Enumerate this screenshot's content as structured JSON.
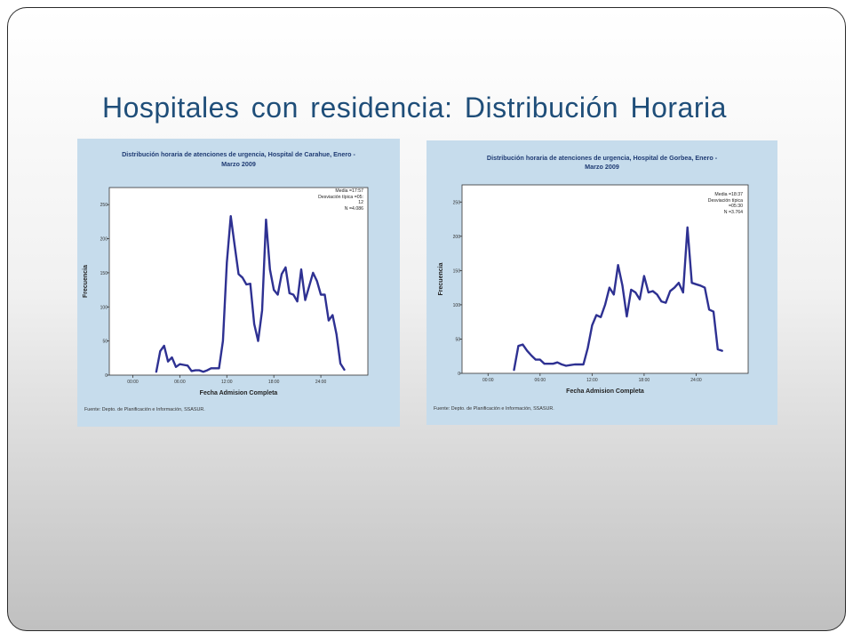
{
  "slide": {
    "title": "Hospitales con residencia: Distribución Horaria",
    "colors": {
      "title": "#1f4e79",
      "panel": "#c6dcec",
      "series": "#2e3192"
    }
  },
  "chart_data": [
    {
      "type": "line",
      "title_lines": [
        "Distribución horaria de atenciones de urgencia, Hospital de Carahue, Enero -",
        "Marzo 2009"
      ],
      "xlabel": "Fecha Admision Completa",
      "ylabel": "Frecuencia",
      "x_ticks": [
        "00:00",
        "06:00",
        "12:00",
        "18:00",
        "24:00"
      ],
      "x_tick_hours": [
        0,
        6,
        12,
        18,
        24
      ],
      "y_ticks": [
        0,
        50,
        100,
        150,
        200,
        250
      ],
      "xlim": [
        -3,
        30
      ],
      "ylim": [
        0,
        275
      ],
      "stats_lines": [
        "Media =17:57",
        "Desviación típica =05:",
        "12",
        "N =4.086"
      ],
      "source": "Fuente: Depto. de Planificación e Información, SSASUR.",
      "x_hours": [
        3,
        3.5,
        4,
        4.5,
        5,
        5.5,
        6,
        6.5,
        7,
        7.5,
        8,
        8.5,
        9,
        9.5,
        10,
        10.5,
        11,
        11.5,
        12,
        12.5,
        13,
        13.5,
        14,
        14.5,
        15,
        15.5,
        16,
        16.5,
        17,
        17.5,
        18,
        18.5,
        19,
        19.5,
        20,
        20.5,
        21,
        21.5,
        22,
        22.5,
        23,
        23.5,
        24,
        24.5,
        25,
        25.5,
        26,
        26.5,
        27
      ],
      "values": [
        5,
        35,
        43,
        20,
        26,
        12,
        16,
        15,
        14,
        6,
        7,
        7,
        5,
        7,
        10,
        10,
        10,
        50,
        165,
        233,
        190,
        148,
        143,
        133,
        134,
        75,
        50,
        95,
        228,
        155,
        125,
        118,
        148,
        158,
        120,
        118,
        108,
        155,
        110,
        130,
        150,
        138,
        118,
        118,
        80,
        88,
        60,
        17,
        8
      ]
    },
    {
      "type": "line",
      "title_lines": [
        "Distribución horaria de atenciones de urgencia, Hospital de Gorbea, Enero -",
        "Marzo 2009"
      ],
      "xlabel": "Fecha Admision Completa",
      "ylabel": "Frecuencia",
      "x_ticks": [
        "00:00",
        "06:00",
        "12:00",
        "18:00",
        "24:00"
      ],
      "x_tick_hours": [
        0,
        6,
        12,
        18,
        24
      ],
      "y_ticks": [
        0,
        50,
        100,
        150,
        200,
        250
      ],
      "xlim": [
        -3,
        30
      ],
      "ylim": [
        0,
        275
      ],
      "stats_lines": [
        "Media =18:37",
        "Desviación típica",
        "=05:30",
        "N =3.764"
      ],
      "source": "Fuente: Depto. de Planificación e Información, SSASUR.",
      "x_hours": [
        3,
        3.5,
        4,
        4.5,
        5,
        5.5,
        6,
        6.5,
        7,
        7.5,
        8,
        8.5,
        9,
        9.5,
        10,
        10.5,
        11,
        11.5,
        12,
        12.5,
        13,
        13.5,
        14,
        14.5,
        15,
        15.5,
        16,
        16.5,
        17,
        17.5,
        18,
        18.5,
        19,
        19.5,
        20,
        20.5,
        21,
        21.5,
        22,
        22.5,
        23,
        23.5,
        24,
        24.5,
        25,
        25.5,
        26,
        26.5,
        27
      ],
      "values": [
        5,
        40,
        42,
        33,
        26,
        20,
        20,
        14,
        14,
        14,
        16,
        13,
        11,
        12,
        13,
        13,
        13,
        37,
        70,
        85,
        82,
        100,
        125,
        115,
        158,
        128,
        83,
        122,
        118,
        108,
        142,
        118,
        120,
        115,
        105,
        103,
        120,
        125,
        132,
        118,
        213,
        132,
        130,
        128,
        125,
        93,
        90,
        35,
        33
      ]
    }
  ]
}
